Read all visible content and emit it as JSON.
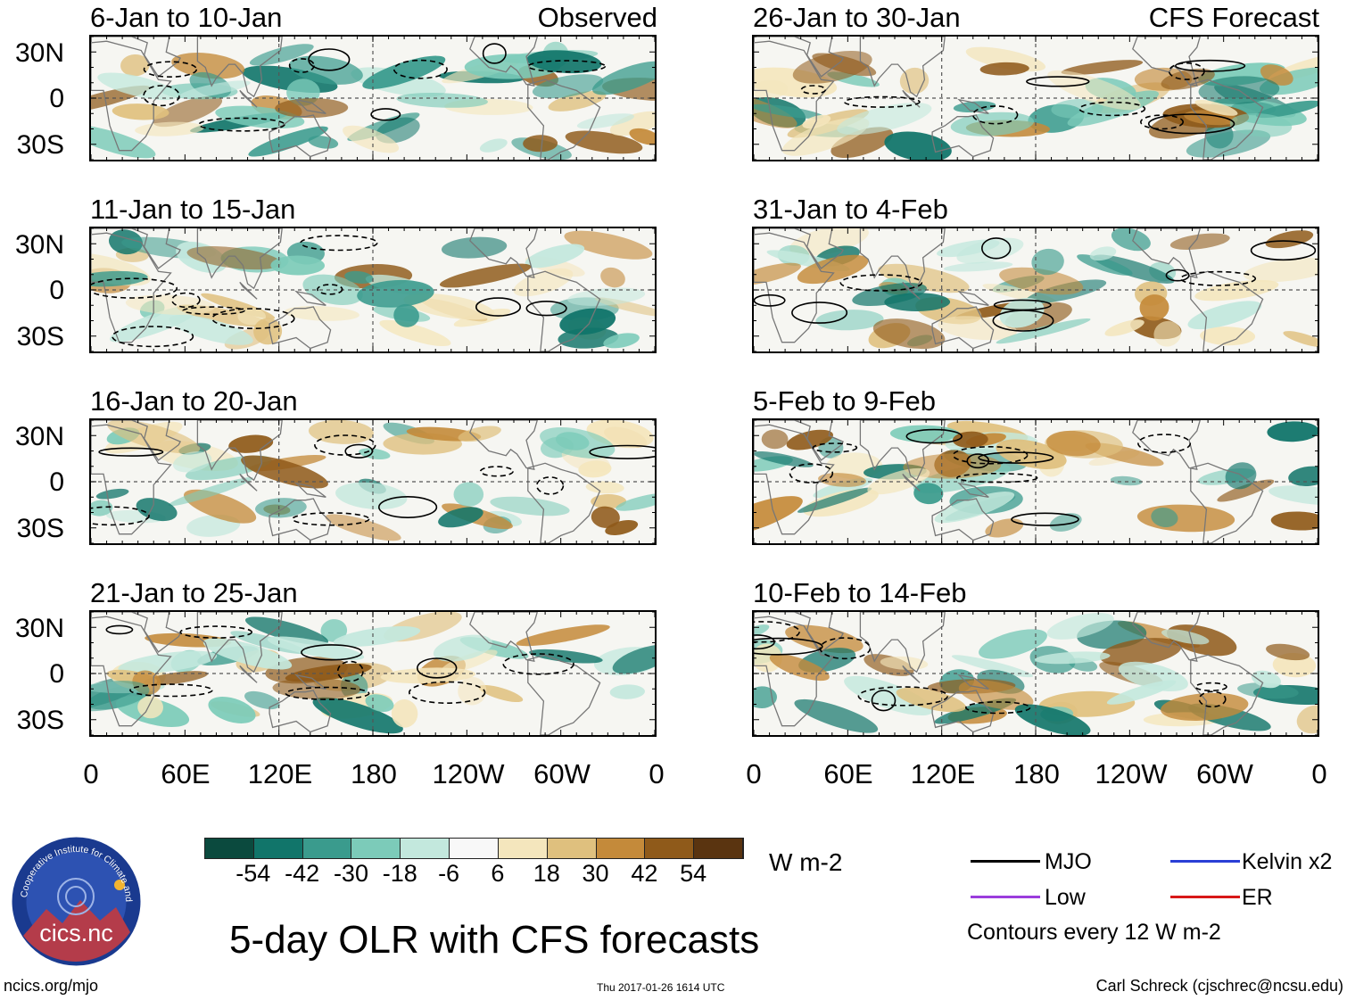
{
  "panels": [
    {
      "title": "6-Jan to 10-Jan",
      "tag": "Observed",
      "seed": 1
    },
    {
      "title": "11-Jan to 15-Jan",
      "tag": "",
      "seed": 2
    },
    {
      "title": "16-Jan to 20-Jan",
      "tag": "",
      "seed": 3
    },
    {
      "title": "21-Jan to 25-Jan",
      "tag": "",
      "seed": 4
    },
    {
      "title": "26-Jan to 30-Jan",
      "tag": "CFS Forecast",
      "seed": 5
    },
    {
      "title": "31-Jan to 4-Feb",
      "tag": "",
      "seed": 6
    },
    {
      "title": "5-Feb to 9-Feb",
      "tag": "",
      "seed": 7
    },
    {
      "title": "10-Feb to 14-Feb",
      "tag": "",
      "seed": 8
    }
  ],
  "lat_labels": [
    "30N",
    "0",
    "30S"
  ],
  "lon_labels": [
    "0",
    "60E",
    "120E",
    "180",
    "120W",
    "60W",
    "0"
  ],
  "colorbar": {
    "colors": [
      "#0b4a3e",
      "#11756a",
      "#3a9b8d",
      "#7ccbb9",
      "#c3e8dd",
      "#f8f8f8",
      "#f4e6bd",
      "#dfc07e",
      "#c48a3a",
      "#8f5a1a",
      "#5a3410"
    ],
    "ticks": [
      "-54",
      "-42",
      "-30",
      "-18",
      "-6",
      "6",
      "18",
      "30",
      "42",
      "54"
    ],
    "units": "W m-2"
  },
  "legend": {
    "items": [
      {
        "label": "MJO",
        "color": "#000000"
      },
      {
        "label": "Kelvin x2",
        "color": "#2a3fd6"
      },
      {
        "label": "Low",
        "color": "#9b3ddc"
      },
      {
        "label": "ER",
        "color": "#d81818"
      }
    ],
    "note": "Contours every 12 W m-2"
  },
  "logo_text": "cics.nc",
  "logo_ring_text": "Cooperative Institute for Climate and Satellites",
  "main_title": "5-day OLR with CFS forecasts",
  "footer": {
    "left": "ncics.org/mjo",
    "center": "Thu 2017-01-26 1614 UTC",
    "right": "Carl Schreck (cjschrec@ncsu.edu)"
  }
}
